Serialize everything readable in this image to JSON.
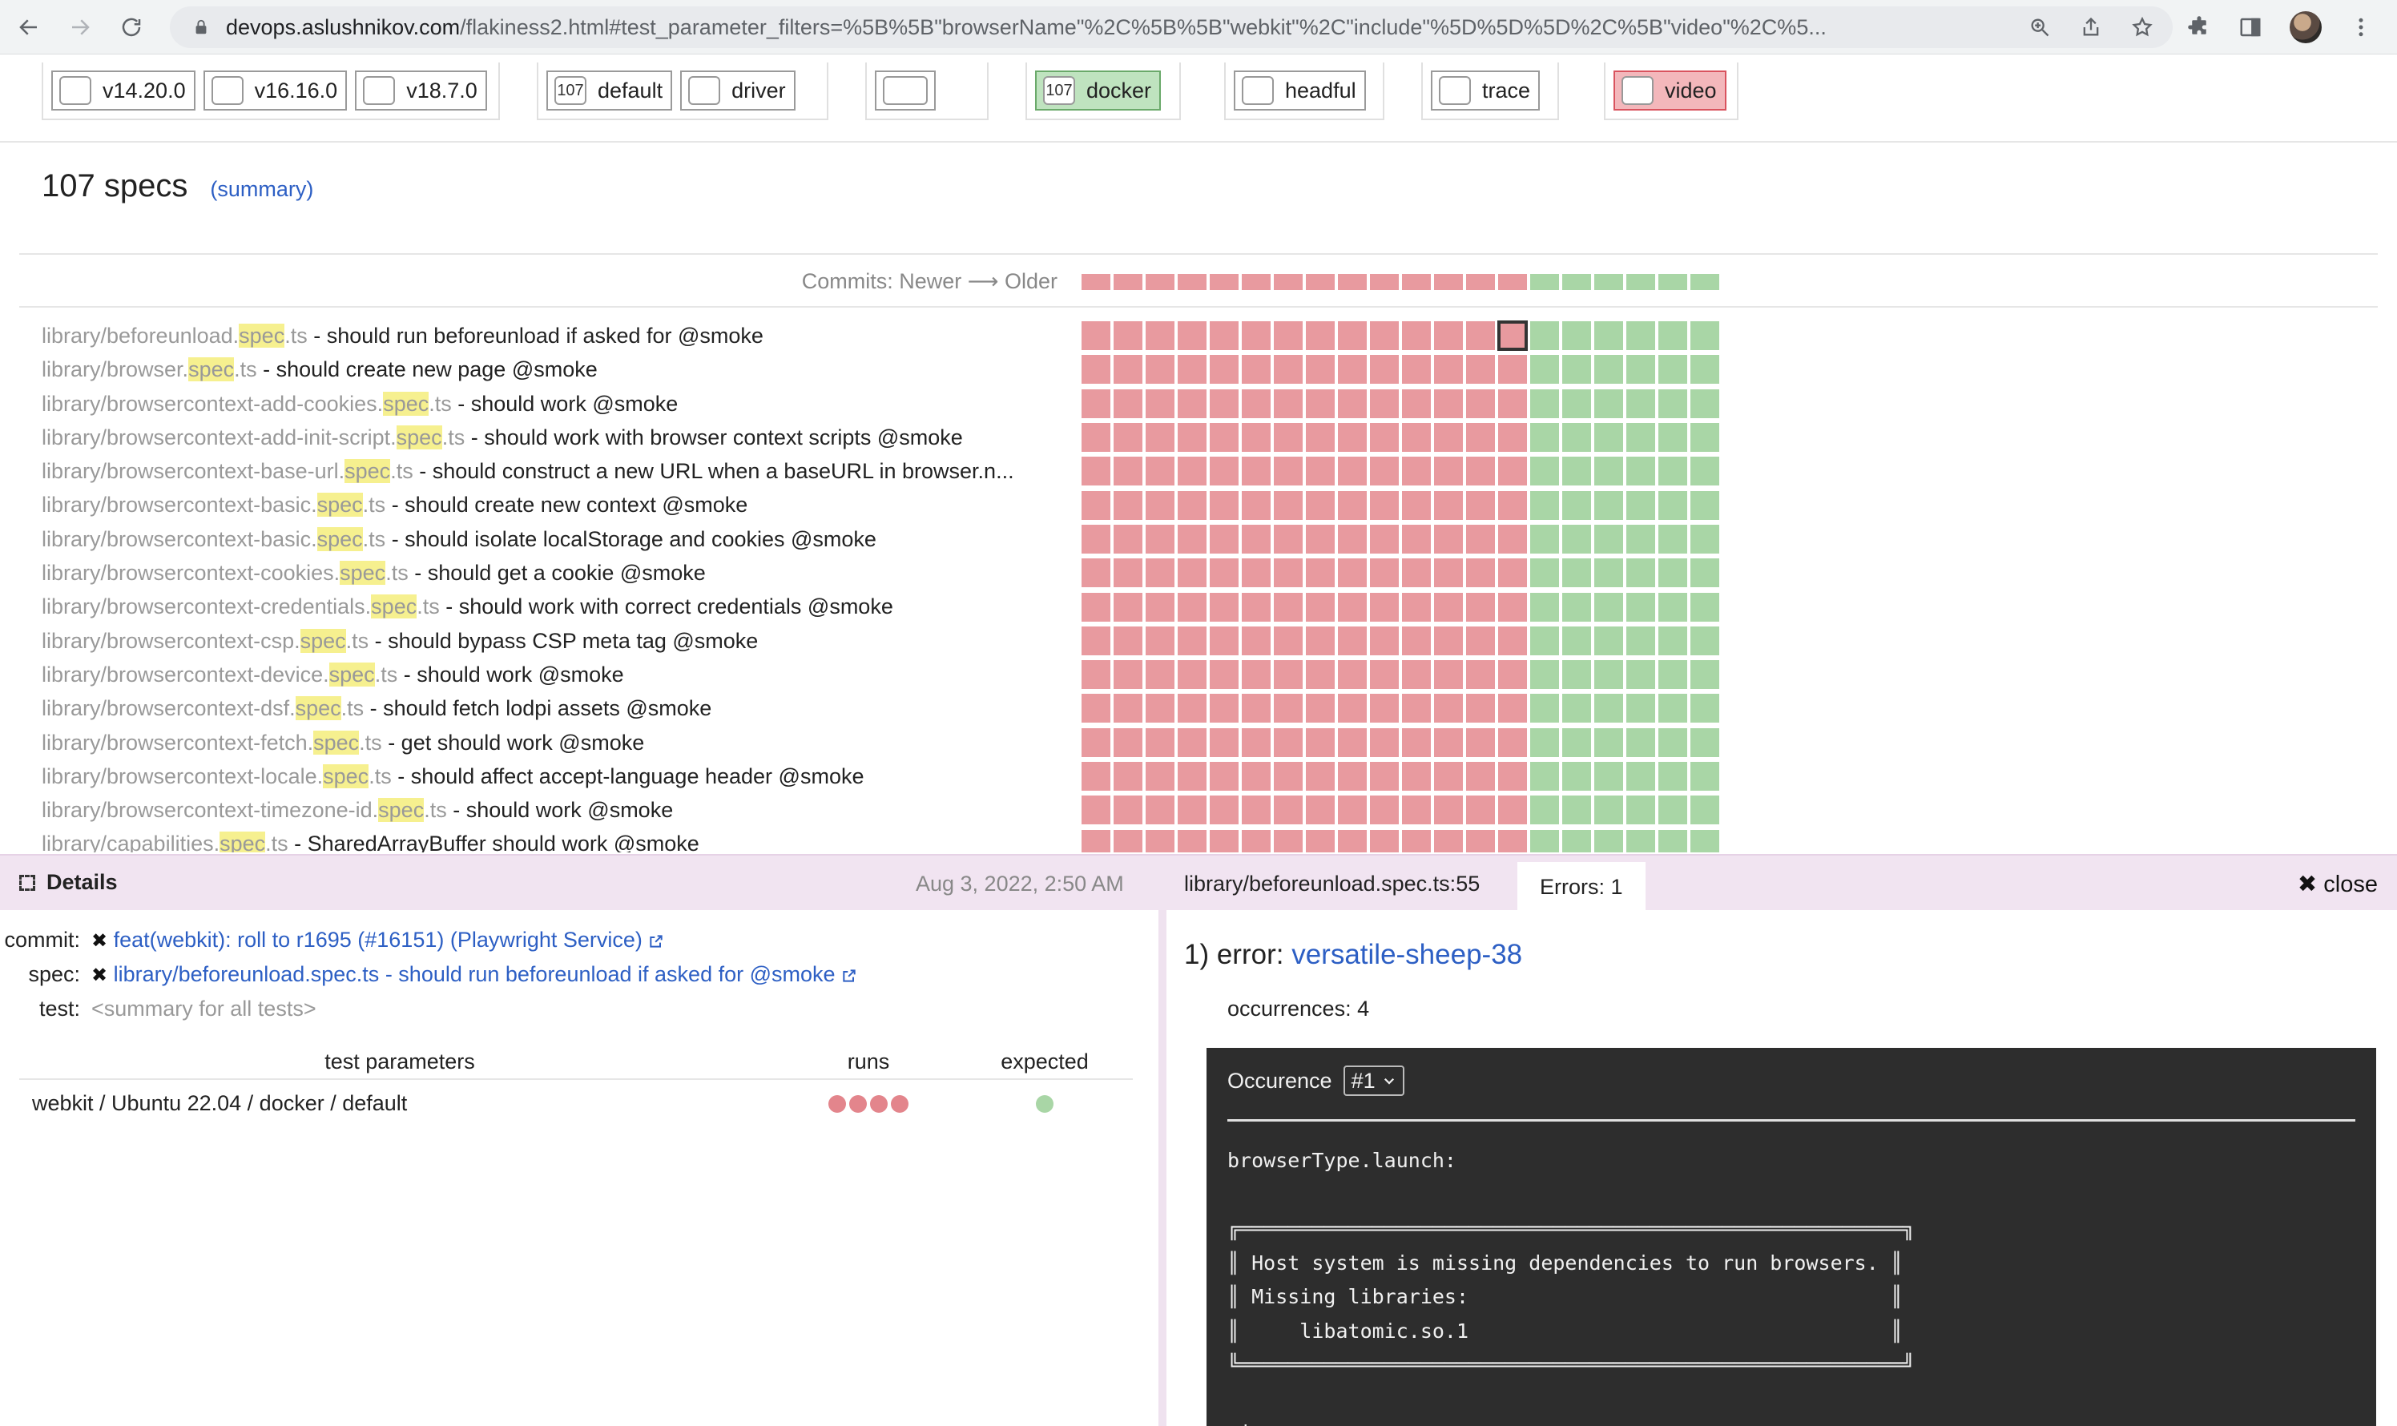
{
  "browser": {
    "url_host": "devops.aslushnikov.com",
    "url_rest": "/flakiness2.html#test_parameter_filters=%5B%5B\"browserName\"%2C%5B%5B\"webkit\"%2C\"include\"%5D%5D%5D%2C%5B\"video\"%2C%5..."
  },
  "filters": {
    "node_versions": [
      "v14.20.0",
      "v16.16.0",
      "v18.7.0"
    ],
    "mode": [
      {
        "count": "107",
        "label": "default"
      },
      {
        "count": "",
        "label": "driver"
      }
    ],
    "docker": {
      "count": "107",
      "label": "docker"
    },
    "headful": {
      "label": "headful"
    },
    "trace": {
      "label": "trace"
    },
    "video": {
      "label": "video"
    }
  },
  "header": {
    "count": "107 specs",
    "summary_link": "(summary)"
  },
  "commits_label": "Commits: Newer ⟶ Older",
  "commits": {
    "failed": 14,
    "passed": 6
  },
  "specs": [
    {
      "path": "library/beforeunload.",
      "hl": "spec",
      "ext": ".ts",
      "title": " - should run beforeunload if asked for @smoke"
    },
    {
      "path": "library/browser.",
      "hl": "spec",
      "ext": ".ts",
      "title": " - should create new page @smoke"
    },
    {
      "path": "library/browsercontext-add-cookies.",
      "hl": "spec",
      "ext": ".ts",
      "title": " - should work @smoke"
    },
    {
      "path": "library/browsercontext-add-init-script.",
      "hl": "spec",
      "ext": ".ts",
      "title": " - should work with browser context scripts @smoke"
    },
    {
      "path": "library/browsercontext-base-url.",
      "hl": "spec",
      "ext": ".ts",
      "title": " - should construct a new URL when a baseURL in browser.n..."
    },
    {
      "path": "library/browsercontext-basic.",
      "hl": "spec",
      "ext": ".ts",
      "title": " - should create new context @smoke"
    },
    {
      "path": "library/browsercontext-basic.",
      "hl": "spec",
      "ext": ".ts",
      "title": " - should isolate localStorage and cookies @smoke"
    },
    {
      "path": "library/browsercontext-cookies.",
      "hl": "spec",
      "ext": ".ts",
      "title": " - should get a cookie @smoke"
    },
    {
      "path": "library/browsercontext-credentials.",
      "hl": "spec",
      "ext": ".ts",
      "title": " - should work with correct credentials @smoke"
    },
    {
      "path": "library/browsercontext-csp.",
      "hl": "spec",
      "ext": ".ts",
      "title": " - should bypass CSP meta tag @smoke"
    },
    {
      "path": "library/browsercontext-device.",
      "hl": "spec",
      "ext": ".ts",
      "title": " - should work @smoke"
    },
    {
      "path": "library/browsercontext-dsf.",
      "hl": "spec",
      "ext": ".ts",
      "title": " - should fetch lodpi assets @smoke"
    },
    {
      "path": "library/browsercontext-fetch.",
      "hl": "spec",
      "ext": ".ts",
      "title": " - get should work @smoke"
    },
    {
      "path": "library/browsercontext-locale.",
      "hl": "spec",
      "ext": ".ts",
      "title": " - should affect accept-language header @smoke"
    },
    {
      "path": "library/browsercontext-timezone-id.",
      "hl": "spec",
      "ext": ".ts",
      "title": " - should work @smoke"
    },
    {
      "path": "library/capabilities.",
      "hl": "spec",
      "ext": ".ts",
      "title": " - SharedArrayBuffer should work @smoke"
    }
  ],
  "details": {
    "title": "Details",
    "date": "Aug 3, 2022, 2:50 AM",
    "location": "library/beforeunload.spec.ts:55",
    "errors_tab": "Errors: 1",
    "close_label": "close",
    "commit_key": "commit:",
    "commit_value": "feat(webkit): roll to r1695 (#16151) (Playwright Service)",
    "spec_key": "spec:",
    "spec_value": "library/beforeunload.spec.ts - should run beforeunload if asked for @smoke",
    "test_key": "test:",
    "test_value": "<summary for all tests>",
    "table": {
      "headers": [
        "test parameters",
        "runs",
        "expected"
      ],
      "rows": [
        {
          "params": "webkit / Ubuntu 22.04 / docker / default",
          "runs": 4,
          "expected": 1
        }
      ]
    }
  },
  "error": {
    "prefix": "1) error: ",
    "name": "versatile-sheep-38",
    "occurrences": "occurrences: 4",
    "occurrence_label": "Occurence",
    "occurrence_value": "#1",
    "log": "browserType.launch:\n\n╔═══════════════════════════════════════════════════════╗\n║ Host system is missing dependencies to run browsers. ║\n║ Missing libraries:                                   ║\n║     libatomic.so.1                                   ║\n╚═══════════════════════════════════════════════════════╝\n\n<inner error>\nError:"
  },
  "colors": {
    "fail": "#e89a9f",
    "pass": "#a9d6a6",
    "link": "#2d5fc4",
    "details_bg": "#f1e4f1"
  }
}
